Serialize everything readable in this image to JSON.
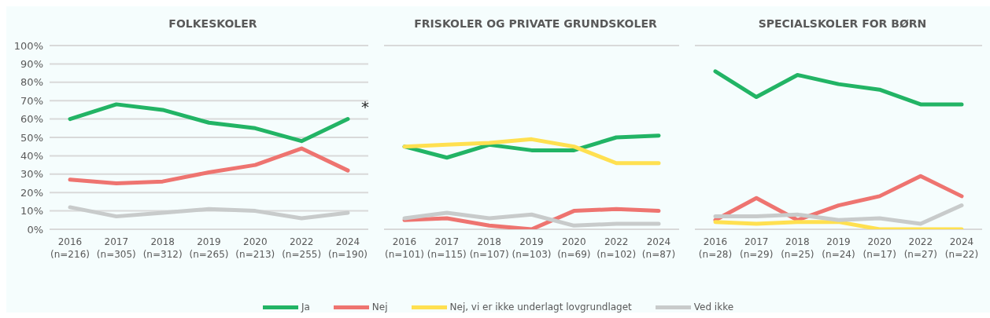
{
  "chart_data": [
    {
      "type": "line",
      "title": "FOLKESKOLER",
      "categories": [
        "2016\n(n=216)",
        "2017\n(n=305)",
        "2018\n(n=312)",
        "2019\n(n=265)",
        "2020\n(n=213)",
        "2022\n(n=255)",
        "2024\n(n=190)"
      ],
      "series": [
        {
          "color": "#22b465",
          "values": [
            60,
            68,
            65,
            58,
            55,
            48,
            60
          ]
        },
        {
          "color": "#ee7470",
          "values": [
            27,
            25,
            26,
            31,
            35,
            44,
            32
          ]
        },
        {
          "color": "#c8cbcb",
          "values": [
            12,
            7,
            9,
            11,
            10,
            6,
            9
          ]
        }
      ],
      "ylim": [
        0,
        100
      ],
      "yticks": [
        {
          "value": 0,
          "label": "0%"
        },
        {
          "value": 10,
          "label": "10%"
        },
        {
          "value": 20,
          "label": "20%"
        },
        {
          "value": 30,
          "label": "30%"
        },
        {
          "value": 40,
          "label": "40%"
        },
        {
          "value": 50,
          "label": "50%"
        },
        {
          "value": 60,
          "label": "60%"
        },
        {
          "value": 70,
          "label": "70%"
        },
        {
          "value": 80,
          "label": "80%"
        },
        {
          "value": 90,
          "label": "90%"
        },
        {
          "value": 100,
          "label": "100%"
        }
      ],
      "grid": "y",
      "marker": "none",
      "line_style": "solid",
      "annotations": [
        {
          "text": "*",
          "x": "2024\n(n=190)",
          "y": 60
        }
      ]
    },
    {
      "type": "line",
      "title": "FRISKOLER OG PRIVATE GRUNDSKOLER",
      "categories": [
        "2016\n(n=101)",
        "2017\n(n=115)",
        "2018\n(n=107)",
        "2019\n(n=103)",
        "2020\n(n=69)",
        "2022\n(n=102)",
        "2024\n(n=87)"
      ],
      "series": [
        {
          "name": "Ja",
          "color": "#22b465",
          "values": [
            45,
            39,
            46,
            43,
            43,
            50,
            51
          ]
        },
        {
          "name": "Nej",
          "color": "#ee7470",
          "values": [
            5,
            6,
            2,
            0,
            10,
            11,
            10
          ]
        },
        {
          "name": "Nej, vi er ikke underlagt lovgrundlaget",
          "color": "#ffe050",
          "values": [
            45,
            46,
            47,
            49,
            45,
            36,
            36
          ]
        },
        {
          "name": "Ved ikke",
          "color": "#c8cbcb",
          "values": [
            6,
            9,
            6,
            8,
            2,
            3,
            3
          ]
        }
      ],
      "ylim": [
        0,
        100
      ],
      "yticks": [
        {
          "value": 0,
          "label": null
        },
        {
          "value": 10,
          "label": null
        },
        {
          "value": 20,
          "label": null
        },
        {
          "value": 30,
          "label": null
        },
        {
          "value": 40,
          "label": null
        },
        {
          "value": 50,
          "label": null
        },
        {
          "value": 60,
          "label": null
        },
        {
          "value": 70,
          "label": null
        },
        {
          "value": 80,
          "label": null
        },
        {
          "value": 90,
          "label": null
        },
        {
          "value": 100,
          "label": null
        }
      ],
      "tick_labels": "x",
      "grid": "y",
      "marker": "none",
      "line_style": "solid",
      "legend": "bottom"
    },
    {
      "type": "line",
      "title": "SPECIALSKOLER FOR BØRN",
      "categories": [
        "2016\n(n=28)",
        "2017\n(n=29)",
        "2018\n(n=25)",
        "2019\n(n=24)",
        "2020\n(n=17)",
        "2022\n(n=27)",
        "2024\n(n=22)"
      ],
      "series": [
        {
          "color": "#22b465",
          "values": [
            86,
            72,
            84,
            79,
            76,
            68,
            68
          ]
        },
        {
          "color": "#ee7470",
          "values": [
            5,
            17,
            5,
            13,
            18,
            29,
            18
          ]
        },
        {
          "color": "#ffe050",
          "values": [
            4,
            3,
            4,
            4,
            0,
            0,
            0
          ]
        },
        {
          "color": "#c8cbcb",
          "values": [
            7,
            7,
            8,
            5,
            6,
            3,
            13
          ]
        }
      ],
      "ylim": [
        0,
        100
      ],
      "yticks": [
        {
          "value": 0,
          "label": null
        },
        {
          "value": 10,
          "label": null
        },
        {
          "value": 20,
          "label": null
        },
        {
          "value": 30,
          "label": null
        },
        {
          "value": 40,
          "label": null
        },
        {
          "value": 50,
          "label": null
        },
        {
          "value": 60,
          "label": null
        },
        {
          "value": 70,
          "label": null
        },
        {
          "value": 80,
          "label": null
        },
        {
          "value": 90,
          "label": null
        },
        {
          "value": 100,
          "label": null
        }
      ],
      "tick_labels": "x",
      "grid": "y",
      "marker": "none",
      "line_style": "solid"
    }
  ]
}
